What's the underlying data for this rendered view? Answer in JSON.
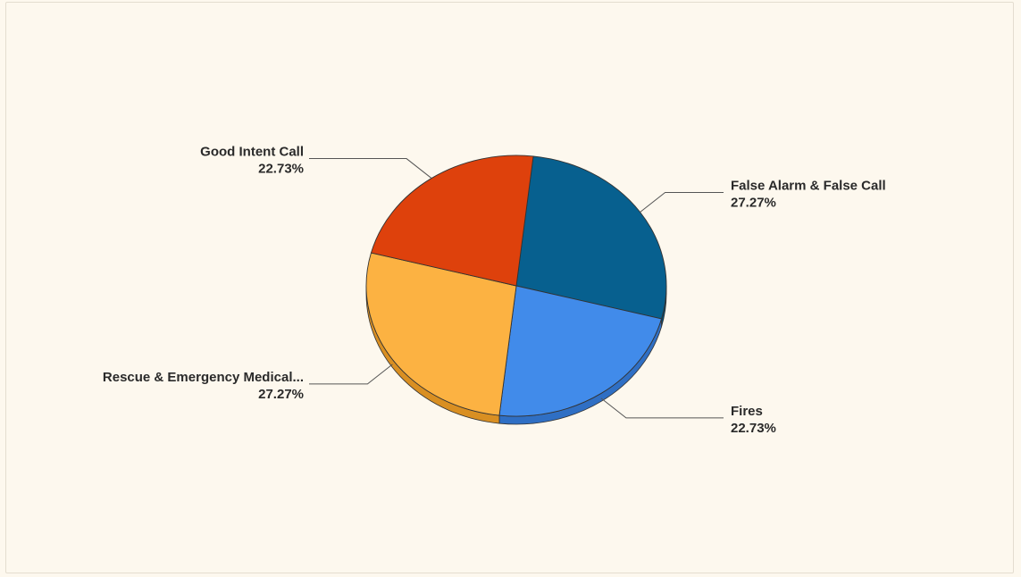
{
  "chart_data": {
    "type": "pie",
    "style": "3d",
    "slices": [
      {
        "label": "False Alarm & False Call",
        "percent": 27.27,
        "percent_label": "27.27%",
        "color": "#07608f",
        "shadow": "#064c70"
      },
      {
        "label": "Fires",
        "percent": 22.73,
        "percent_label": "22.73%",
        "color": "#418bea",
        "shadow": "#2f6fc4"
      },
      {
        "label": "Rescue & Emergency Medical...",
        "percent": 27.27,
        "percent_label": "27.27%",
        "color": "#fcb242",
        "shadow": "#d98f22"
      },
      {
        "label": "Good Intent Call",
        "percent": 22.73,
        "percent_label": "22.73%",
        "color": "#de410c",
        "shadow": "#b33208"
      }
    ]
  }
}
